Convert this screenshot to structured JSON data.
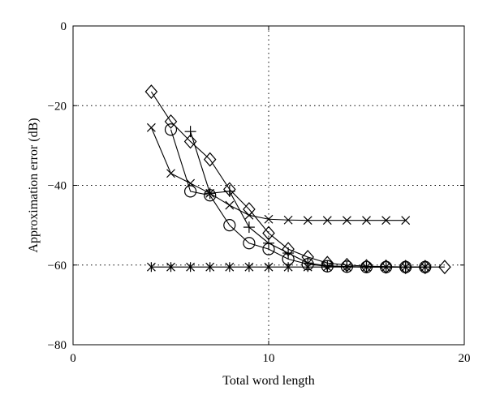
{
  "chart_data": {
    "type": "line",
    "xlabel": "Total word length",
    "ylabel": "Approximation error (dB)",
    "xlim": [
      0,
      20
    ],
    "ylim": [
      -80,
      0
    ],
    "xticks": [
      0,
      10,
      20
    ],
    "yticks": [
      0,
      -20,
      -40,
      -60,
      -80
    ],
    "grid": "dotted",
    "legend": "none",
    "series": [
      {
        "marker": "star",
        "x": [
          4,
          5,
          6,
          7,
          8,
          9,
          10,
          11,
          12,
          13,
          14,
          15,
          16,
          17,
          18
        ],
        "y": [
          -60.5,
          -60.5,
          -60.5,
          -60.5,
          -60.5,
          -60.5,
          -60.5,
          -60.5,
          -60.5,
          -60.5,
          -60.5,
          -60.5,
          -60.5,
          -60.5,
          -60.5
        ]
      },
      {
        "marker": "x",
        "x": [
          4,
          5,
          6,
          7,
          8,
          9,
          10,
          11,
          12,
          13,
          14,
          15,
          16,
          17
        ],
        "y": [
          -25.5,
          -37,
          -39.5,
          -42,
          -45,
          -47.5,
          -48.5,
          -48.7,
          -48.8,
          -48.8,
          -48.8,
          -48.8,
          -48.8,
          -48.8
        ]
      },
      {
        "marker": "circle",
        "x": [
          5,
          6,
          7,
          8,
          9,
          10,
          11,
          12,
          13,
          14,
          15,
          16,
          17,
          18
        ],
        "y": [
          -26,
          -41.5,
          -42.5,
          -50,
          -54.5,
          -56,
          -58.5,
          -59.8,
          -60.3,
          -60.4,
          -60.5,
          -60.5,
          -60.5,
          -60.5
        ]
      },
      {
        "marker": "plus",
        "x": [
          6,
          7,
          8,
          9,
          10,
          11,
          12,
          13,
          14,
          15,
          16,
          17,
          18
        ],
        "y": [
          -26.5,
          -42,
          -41.5,
          -50.5,
          -54.5,
          -57,
          -59.5,
          -60.2,
          -60.4,
          -60.5,
          -60.5,
          -60.5,
          -60.5
        ]
      },
      {
        "marker": "diamond",
        "x": [
          4,
          5,
          6,
          7,
          8,
          9,
          10,
          11,
          12,
          13,
          14,
          15,
          16,
          17,
          18,
          19
        ],
        "y": [
          -16.5,
          -24,
          -29,
          -33.5,
          -41,
          -46,
          -52,
          -56,
          -58,
          -59.5,
          -60,
          -60.3,
          -60.4,
          -60.5,
          -60.5,
          -60.5
        ]
      }
    ]
  }
}
